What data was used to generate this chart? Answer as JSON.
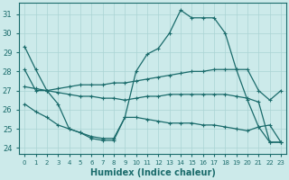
{
  "xlabel": "Humidex (Indice chaleur)",
  "bg_color": "#cceaea",
  "grid_color": "#aad4d4",
  "line_color": "#1a6b6b",
  "xlim": [
    -0.5,
    23.5
  ],
  "ylim": [
    23.7,
    31.6
  ],
  "yticks": [
    24,
    25,
    26,
    27,
    28,
    29,
    30,
    31
  ],
  "xticks": [
    0,
    1,
    2,
    3,
    4,
    5,
    6,
    7,
    8,
    9,
    10,
    11,
    12,
    13,
    14,
    15,
    16,
    17,
    18,
    19,
    20,
    21,
    22,
    23
  ],
  "line1_x": [
    0,
    1,
    2,
    3,
    4,
    5,
    6,
    7,
    8,
    9,
    10,
    11,
    12,
    13,
    14,
    15,
    16,
    17,
    18,
    19,
    20,
    21,
    22,
    23
  ],
  "line1_y": [
    29.3,
    28.1,
    27.0,
    26.3,
    25.0,
    24.8,
    24.5,
    24.4,
    24.4,
    25.6,
    28.0,
    28.9,
    29.2,
    30.0,
    31.2,
    30.8,
    30.8,
    30.8,
    30.0,
    28.1,
    26.5,
    25.1,
    24.3,
    24.3
  ],
  "line2_x": [
    0,
    1,
    2,
    3,
    4,
    5,
    6,
    7,
    8,
    9,
    10,
    11,
    12,
    13,
    14,
    15,
    16,
    17,
    18,
    19,
    20,
    21,
    22,
    23
  ],
  "line2_y": [
    28.1,
    27.0,
    27.0,
    27.1,
    27.2,
    27.3,
    27.3,
    27.3,
    27.4,
    27.4,
    27.5,
    27.6,
    27.7,
    27.8,
    27.9,
    28.0,
    28.0,
    28.1,
    28.1,
    28.1,
    28.1,
    27.0,
    26.5,
    27.0
  ],
  "line3_x": [
    0,
    1,
    2,
    3,
    4,
    5,
    6,
    7,
    8,
    9,
    10,
    11,
    12,
    13,
    14,
    15,
    16,
    17,
    18,
    19,
    20,
    21,
    22,
    23
  ],
  "line3_y": [
    27.2,
    27.1,
    27.0,
    26.9,
    26.8,
    26.7,
    26.7,
    26.6,
    26.6,
    26.5,
    26.6,
    26.7,
    26.7,
    26.8,
    26.8,
    26.8,
    26.8,
    26.8,
    26.8,
    26.7,
    26.6,
    26.4,
    24.3,
    24.3
  ],
  "line4_x": [
    0,
    1,
    2,
    3,
    4,
    5,
    6,
    7,
    8,
    9,
    10,
    11,
    12,
    13,
    14,
    15,
    16,
    17,
    18,
    19,
    20,
    21,
    22,
    23
  ],
  "line4_y": [
    26.3,
    25.9,
    25.6,
    25.2,
    25.0,
    24.8,
    24.6,
    24.5,
    24.5,
    25.6,
    25.6,
    25.5,
    25.4,
    25.3,
    25.3,
    25.3,
    25.2,
    25.2,
    25.1,
    25.0,
    24.9,
    25.1,
    25.2,
    24.3
  ]
}
